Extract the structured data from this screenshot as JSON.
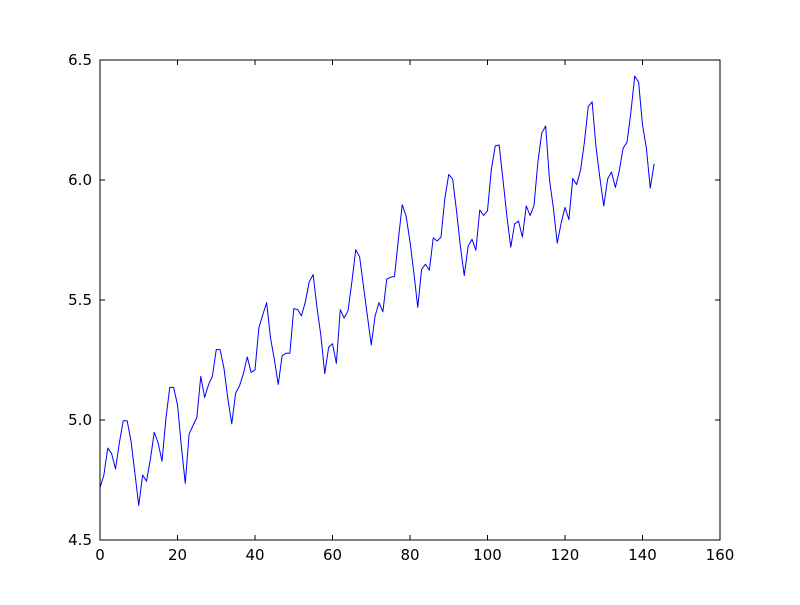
{
  "chart_data": {
    "type": "line",
    "title": "",
    "xlabel": "",
    "ylabel": "",
    "xlim": [
      0,
      160
    ],
    "ylim": [
      4.5,
      6.5
    ],
    "x_ticks": [
      0,
      20,
      40,
      60,
      80,
      100,
      120,
      140,
      160
    ],
    "x_tick_labels": [
      "0",
      "20",
      "40",
      "60",
      "80",
      "100",
      "120",
      "140",
      "160"
    ],
    "y_ticks": [
      4.5,
      5.0,
      5.5,
      6.0,
      6.5
    ],
    "y_tick_labels": [
      "4.5",
      "5.0",
      "5.5",
      "6.0",
      "6.5"
    ],
    "grid": false,
    "legend": "none",
    "series": [
      {
        "color": "#0000ff",
        "x": [
          0,
          1,
          2,
          3,
          4,
          5,
          6,
          7,
          8,
          9,
          10,
          11,
          12,
          13,
          14,
          15,
          16,
          17,
          18,
          19,
          20,
          21,
          22,
          23,
          24,
          25,
          26,
          27,
          28,
          29,
          30,
          31,
          32,
          33,
          34,
          35,
          36,
          37,
          38,
          39,
          40,
          41,
          42,
          43,
          44,
          45,
          46,
          47,
          48,
          49,
          50,
          51,
          52,
          53,
          54,
          55,
          56,
          57,
          58,
          59,
          60,
          61,
          62,
          63,
          64,
          65,
          66,
          67,
          68,
          69,
          70,
          71,
          72,
          73,
          74,
          75,
          76,
          77,
          78,
          79,
          80,
          81,
          82,
          83,
          84,
          85,
          86,
          87,
          88,
          89,
          90,
          91,
          92,
          93,
          94,
          95,
          96,
          97,
          98,
          99,
          100,
          101,
          102,
          103,
          104,
          105,
          106,
          107,
          108,
          109,
          110,
          111,
          112,
          113,
          114,
          115,
          116,
          117,
          118,
          119,
          120,
          121,
          122,
          123,
          124,
          125,
          126,
          127,
          128,
          129,
          130,
          131,
          132,
          133,
          134,
          135,
          136,
          137,
          138,
          139,
          140,
          141,
          142,
          143
        ],
        "values": [
          4.718,
          4.771,
          4.883,
          4.86,
          4.796,
          4.905,
          4.997,
          4.997,
          4.913,
          4.779,
          4.644,
          4.771,
          4.745,
          4.836,
          4.949,
          4.905,
          4.828,
          5.004,
          5.136,
          5.136,
          5.063,
          4.89,
          4.736,
          4.942,
          4.977,
          5.011,
          5.182,
          5.094,
          5.147,
          5.182,
          5.293,
          5.293,
          5.215,
          5.088,
          4.984,
          5.112,
          5.142,
          5.193,
          5.263,
          5.198,
          5.209,
          5.384,
          5.438,
          5.489,
          5.342,
          5.252,
          5.148,
          5.268,
          5.278,
          5.278,
          5.464,
          5.46,
          5.434,
          5.493,
          5.576,
          5.606,
          5.468,
          5.352,
          5.193,
          5.303,
          5.318,
          5.236,
          5.46,
          5.425,
          5.455,
          5.576,
          5.71,
          5.68,
          5.557,
          5.434,
          5.313,
          5.434,
          5.489,
          5.451,
          5.587,
          5.595,
          5.598,
          5.753,
          5.897,
          5.849,
          5.743,
          5.613,
          5.469,
          5.628,
          5.649,
          5.624,
          5.759,
          5.746,
          5.762,
          5.924,
          6.023,
          6.004,
          5.872,
          5.724,
          5.602,
          5.724,
          5.753,
          5.707,
          5.875,
          5.852,
          5.872,
          6.045,
          6.142,
          6.146,
          6.001,
          5.849,
          5.72,
          5.817,
          5.829,
          5.762,
          5.892,
          5.852,
          5.894,
          6.075,
          6.196,
          6.225,
          6.001,
          5.883,
          5.737,
          5.82,
          5.886,
          5.835,
          6.006,
          5.981,
          6.04,
          6.157,
          6.306,
          6.326,
          6.138,
          6.009,
          5.892,
          6.004,
          6.033,
          5.969,
          6.038,
          6.133,
          6.157,
          6.282,
          6.433,
          6.407,
          6.23,
          6.133,
          5.966,
          6.068
        ]
      }
    ]
  }
}
